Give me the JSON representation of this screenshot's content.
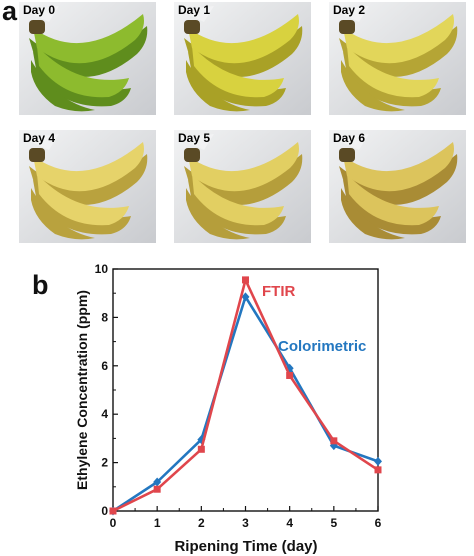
{
  "panel_a": {
    "label": "a",
    "photos": [
      {
        "day": "Day 0",
        "peel": "#8dbb2e",
        "shade": "#5f8d1d"
      },
      {
        "day": "Day 1",
        "peel": "#d8d23f",
        "shade": "#a9a126"
      },
      {
        "day": "Day 2",
        "peel": "#e2d65a",
        "shade": "#b5a535"
      },
      {
        "day": "Day 4",
        "peel": "#e6d36a",
        "shade": "#b9a23e"
      },
      {
        "day": "Day 5",
        "peel": "#e2cf62",
        "shade": "#b59e3b"
      },
      {
        "day": "Day 6",
        "peel": "#dcc45c",
        "shade": "#a98c35"
      }
    ]
  },
  "panel_b": {
    "label": "b"
  },
  "chart_data": {
    "type": "line",
    "xlabel": "Ripening Time (day)",
    "ylabel": "Ethylene Concentration (ppm)",
    "xlim": [
      0,
      6
    ],
    "ylim": [
      0,
      10
    ],
    "xticks": [
      "0",
      "1",
      "2",
      "3",
      "4",
      "5",
      "6"
    ],
    "yticks": [
      "0",
      "2",
      "4",
      "6",
      "8",
      "10"
    ],
    "grid": false,
    "series": [
      {
        "name": "FTIR",
        "color": "#e0464c",
        "marker": "square",
        "x": [
          0,
          1,
          2,
          3,
          4,
          5,
          6
        ],
        "y": [
          0,
          0.9,
          2.55,
          9.55,
          5.6,
          2.9,
          1.7
        ]
      },
      {
        "name": "Colorimetric",
        "color": "#2377c0",
        "marker": "diamond",
        "x": [
          0,
          1,
          2,
          3,
          4,
          5,
          6
        ],
        "y": [
          0,
          1.2,
          2.95,
          8.85,
          5.9,
          2.7,
          2.05
        ]
      }
    ]
  }
}
